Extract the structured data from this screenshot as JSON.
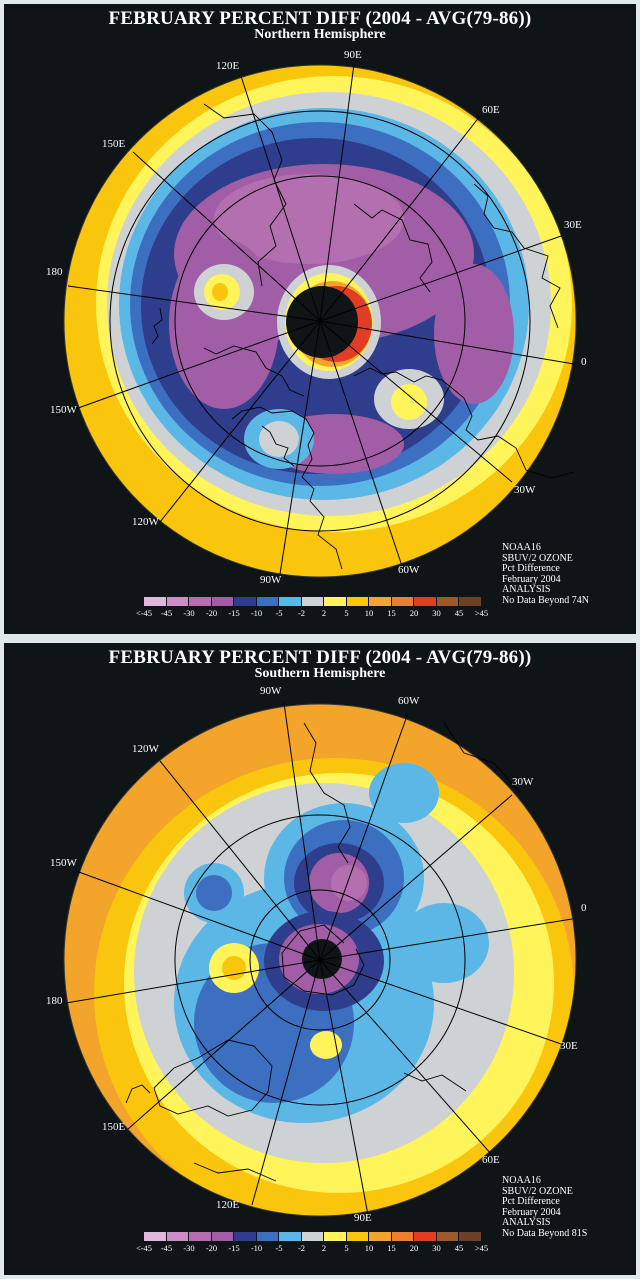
{
  "colors": {
    "scale": [
      "#dfb6dc",
      "#c98fc6",
      "#b46fb0",
      "#a15ea6",
      "#2e3d8c",
      "#3d6fc1",
      "#5ab7e6",
      "#cfd2d4",
      "#fff45a",
      "#f9c60d",
      "#f3a42a",
      "#ed7d2f",
      "#e13d25",
      "#9c5a2c",
      "#6b4128"
    ],
    "ocean_bg": "#0f1517"
  },
  "legend_ticks": [
    "<-45",
    "-45",
    "-30",
    "-20",
    "-15",
    "-10",
    "-5",
    "-2",
    "2",
    "5",
    "10",
    "15",
    "20",
    "30",
    "45",
    ">45"
  ],
  "north": {
    "title": "FEBRUARY PERCENT DIFF (2004 - AVG(79-86))",
    "subtitle": "Northern Hemisphere",
    "lon_labels": {
      "e90": "90E",
      "e120": "120E",
      "e60": "60E",
      "e150": "150E",
      "e30": "30E",
      "d180": "180",
      "zero": "0",
      "w150": "150W",
      "w30": "30W",
      "w120": "120W",
      "w90": "90W",
      "w60": "60W"
    },
    "info": [
      "NOAA16",
      "SBUV/2 OZONE",
      "Pct Difference",
      "February 2004",
      "ANALYSIS",
      "No Data Beyond 74N"
    ]
  },
  "south": {
    "title": "FEBRUARY PERCENT DIFF (2004 - AVG(79-86))",
    "subtitle": "Southern Hemisphere",
    "lon_labels": {
      "w90": "90W",
      "w60": "60W",
      "w120": "120W",
      "w30": "30W",
      "w150": "150W",
      "zero": "0",
      "d180": "180",
      "e30": "30E",
      "e150": "150E",
      "e60": "60E",
      "e120": "120E",
      "e90": "90E"
    },
    "info": [
      "NOAA16",
      "SBUV/2 OZONE",
      "Pct Difference",
      "February 2004",
      "ANALYSIS",
      "No Data Beyond 81S"
    ]
  }
}
